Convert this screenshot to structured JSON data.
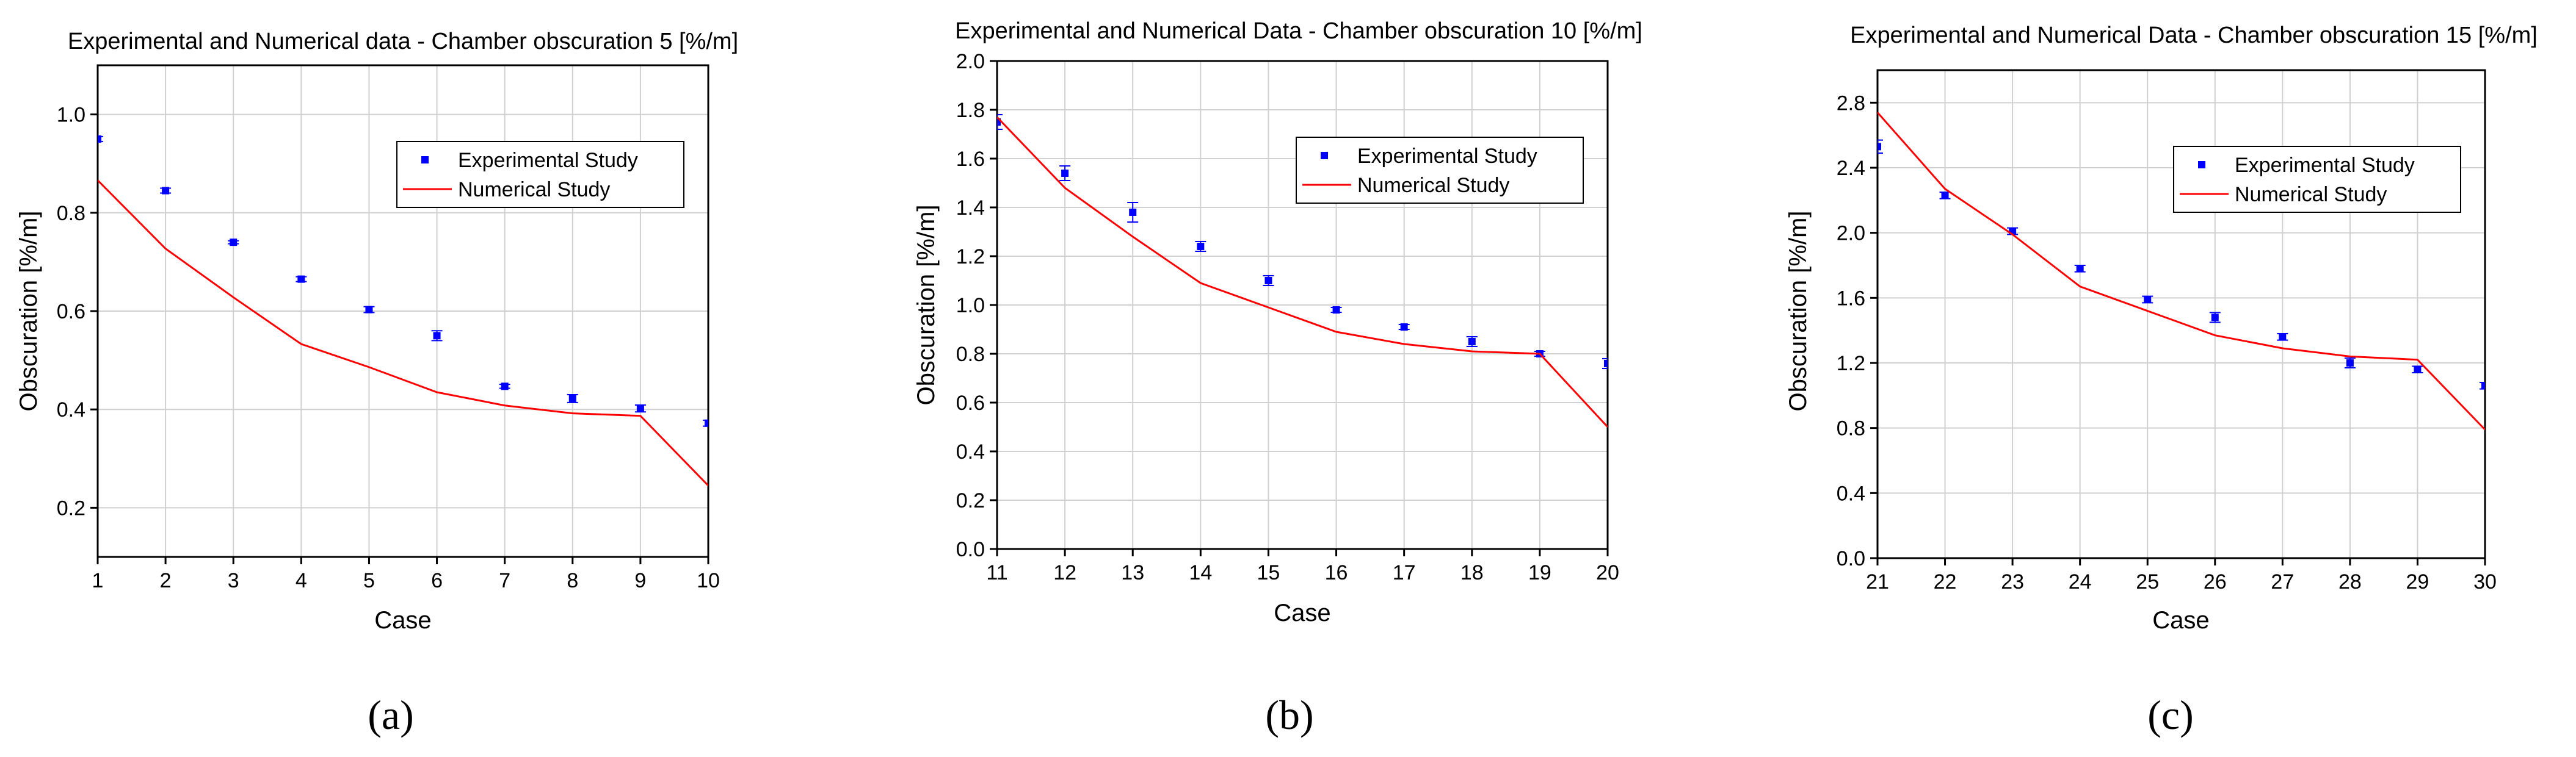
{
  "colors": {
    "experimental": "#0000ff",
    "numerical": "#ff0000",
    "grid": "#d0d0d0",
    "axis": "#000000"
  },
  "chart_data": [
    {
      "type": "line",
      "panel_label": "(a)",
      "title": "Experimental and Numerical data - Chamber obscuration 5 [%/m]",
      "xlabel": "Case",
      "ylabel": "Obscuration [%/m]",
      "xlim": [
        1,
        10
      ],
      "ylim": [
        0.1,
        1.1
      ],
      "xticks": [
        1,
        2,
        3,
        4,
        5,
        6,
        7,
        8,
        9,
        10
      ],
      "yticks": [
        0.2,
        0.4,
        0.6,
        0.8,
        1.0
      ],
      "tick_decimals": 1,
      "legend": [
        "Experimental Study",
        "Numerical Study"
      ],
      "legend_position": "top-right",
      "grid": true,
      "series": [
        {
          "name": "Experimental Study",
          "kind": "scatter",
          "x": [
            1,
            2,
            3,
            4,
            5,
            6,
            7,
            8,
            9,
            10
          ],
          "y": [
            0.95,
            0.845,
            0.74,
            0.665,
            0.603,
            0.55,
            0.447,
            0.422,
            0.402,
            0.372
          ],
          "err": [
            0.005,
            0.005,
            0.003,
            0.005,
            0.006,
            0.01,
            0.004,
            0.008,
            0.007,
            0.006
          ]
        },
        {
          "name": "Numerical Study",
          "kind": "line",
          "x": [
            1,
            2,
            3,
            4,
            5,
            6,
            7,
            8,
            9,
            10
          ],
          "y": [
            0.866,
            0.727,
            0.628,
            0.533,
            0.486,
            0.435,
            0.408,
            0.392,
            0.387,
            0.245
          ]
        }
      ]
    },
    {
      "type": "line",
      "panel_label": "(b)",
      "title": "Experimental and Numerical Data - Chamber obscuration 10 [%/m]",
      "xlabel": "Case",
      "ylabel": "Obscuration [%/m]",
      "xlim": [
        11,
        20
      ],
      "ylim": [
        0.0,
        2.0
      ],
      "xticks": [
        11,
        12,
        13,
        14,
        15,
        16,
        17,
        18,
        19,
        20
      ],
      "yticks": [
        0.0,
        0.2,
        0.4,
        0.6,
        0.8,
        1.0,
        1.2,
        1.4,
        1.6,
        1.8,
        2.0
      ],
      "tick_decimals": 1,
      "legend": [
        "Experimental Study",
        "Numerical Study"
      ],
      "legend_position": "top-right",
      "grid": true,
      "series": [
        {
          "name": "Experimental Study",
          "kind": "scatter",
          "x": [
            11,
            12,
            13,
            14,
            15,
            16,
            17,
            18,
            19,
            20
          ],
          "y": [
            1.75,
            1.54,
            1.38,
            1.24,
            1.1,
            0.98,
            0.91,
            0.85,
            0.8,
            0.76
          ],
          "err": [
            0.03,
            0.03,
            0.04,
            0.02,
            0.02,
            0.01,
            0.01,
            0.02,
            0.01,
            0.02
          ]
        },
        {
          "name": "Numerical Study",
          "kind": "line",
          "x": [
            11,
            12,
            13,
            14,
            15,
            16,
            17,
            18,
            19,
            20
          ],
          "y": [
            1.77,
            1.48,
            1.28,
            1.09,
            0.99,
            0.89,
            0.84,
            0.81,
            0.8,
            0.5
          ]
        }
      ]
    },
    {
      "type": "line",
      "panel_label": "(c)",
      "title": "Experimental and Numerical Data - Chamber obscuration 15 [%/m]",
      "xlabel": "Case",
      "ylabel": "Obscuration [%/m]",
      "xlim": [
        21,
        30
      ],
      "ylim": [
        0.0,
        3.0
      ],
      "xticks": [
        21,
        22,
        23,
        24,
        25,
        26,
        27,
        28,
        29,
        30
      ],
      "yticks": [
        0.0,
        0.4,
        0.8,
        1.2,
        1.6,
        2.0,
        2.4,
        2.8
      ],
      "tick_decimals": 1,
      "legend": [
        "Experimental Study",
        "Numerical Study"
      ],
      "legend_position": "top-right",
      "grid": true,
      "series": [
        {
          "name": "Experimental Study",
          "kind": "scatter",
          "x": [
            21,
            22,
            23,
            24,
            25,
            26,
            27,
            28,
            29,
            30
          ],
          "y": [
            2.53,
            2.23,
            2.01,
            1.78,
            1.59,
            1.48,
            1.36,
            1.2,
            1.16,
            1.06
          ],
          "err": [
            0.04,
            0.02,
            0.02,
            0.02,
            0.02,
            0.03,
            0.02,
            0.03,
            0.02,
            0.02
          ]
        },
        {
          "name": "Numerical Study",
          "kind": "line",
          "x": [
            21,
            22,
            23,
            24,
            25,
            26,
            27,
            28,
            29,
            30
          ],
          "y": [
            2.74,
            2.27,
            1.99,
            1.67,
            1.52,
            1.37,
            1.29,
            1.24,
            1.22,
            0.79
          ]
        }
      ]
    }
  ]
}
